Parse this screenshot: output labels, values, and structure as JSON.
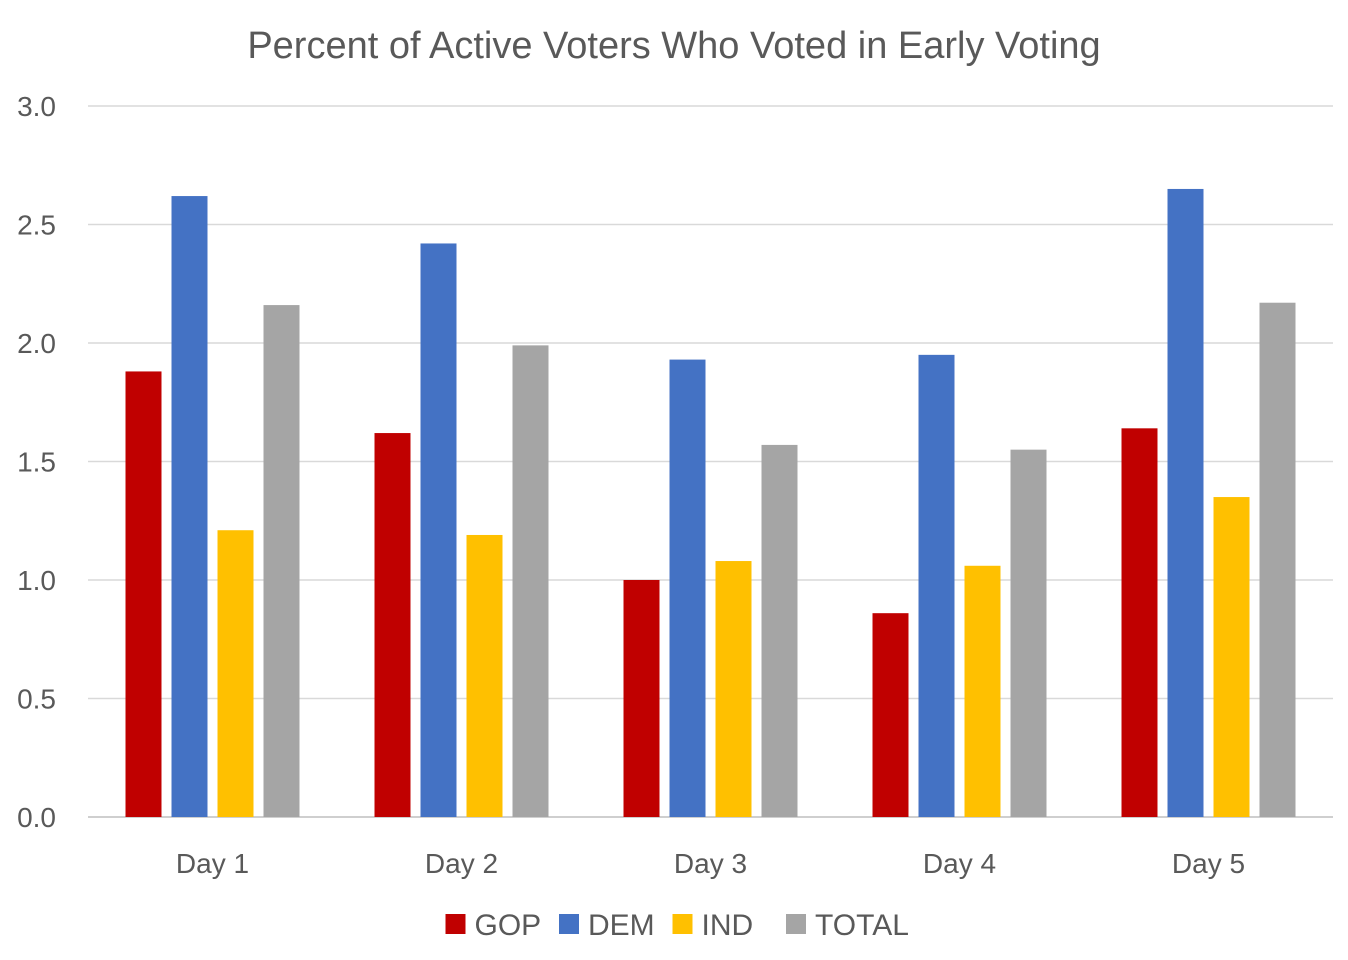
{
  "chart_data": {
    "type": "bar",
    "title": "Percent of Active Voters Who Voted in Early Voting",
    "xlabel": "",
    "ylabel": "",
    "ylim": [
      0,
      3.0
    ],
    "yticks": [
      "0.0",
      "0.5",
      "1.0",
      "1.5",
      "2.0",
      "2.5",
      "3.0"
    ],
    "ytick_values": [
      0,
      0.5,
      1.0,
      1.5,
      2.0,
      2.5,
      3.0
    ],
    "grid": true,
    "legend_position": "bottom",
    "categories": [
      "Day 1",
      "Day 2",
      "Day 3",
      "Day 4",
      "Day 5"
    ],
    "series": [
      {
        "name": "GOP",
        "color": "#c00000",
        "values": [
          1.88,
          1.62,
          1.0,
          0.86,
          1.64
        ]
      },
      {
        "name": "DEM",
        "color": "#4472c4",
        "values": [
          2.62,
          2.42,
          1.93,
          1.95,
          2.65
        ]
      },
      {
        "name": "IND",
        "color": "#ffc000",
        "values": [
          1.21,
          1.19,
          1.08,
          1.06,
          1.35
        ]
      },
      {
        "name": "TOTAL",
        "color": "#a5a5a5",
        "values": [
          2.16,
          1.99,
          1.57,
          1.55,
          2.17
        ]
      }
    ]
  }
}
